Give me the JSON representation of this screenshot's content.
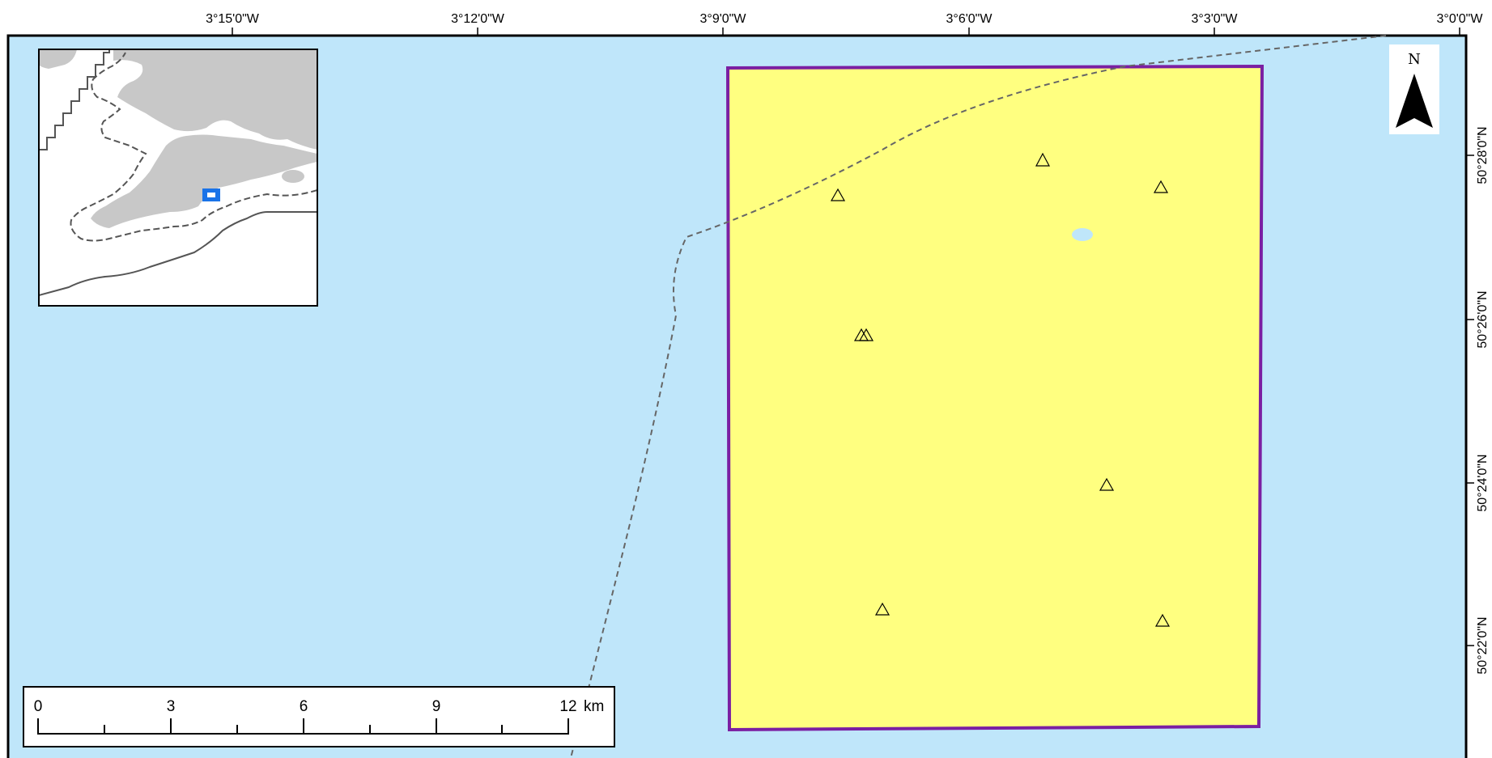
{
  "map": {
    "colors": {
      "sea": "#bfe6fa",
      "survey_area_fill": "#ffff80",
      "survey_area_border": "#7b1fa2",
      "boundary_line": "#666666",
      "inset_land": "#c8c8c8",
      "inset_sea": "#ffffff",
      "inset_marker": "#1a73e8",
      "frame": "#000000"
    },
    "graticule": {
      "longitude_labels": [
        "3°15'0\"W",
        "3°12'0\"W",
        "3°9'0\"W",
        "3°6'0\"W",
        "3°3'0\"W",
        "3°0'0\"W"
      ],
      "latitude_labels": [
        "50°28'0\"N",
        "50°26'0\"N",
        "50°24'0\"N",
        "50°22'0\"N"
      ]
    },
    "scale_bar": {
      "labels": [
        "0",
        "3",
        "6",
        "9",
        "12"
      ],
      "unit": "km"
    },
    "north_arrow": {
      "label": "N"
    },
    "features": {
      "survey_area": "polygon",
      "sample_markers": "triangle-icon",
      "boundary": "dashed-line"
    }
  }
}
